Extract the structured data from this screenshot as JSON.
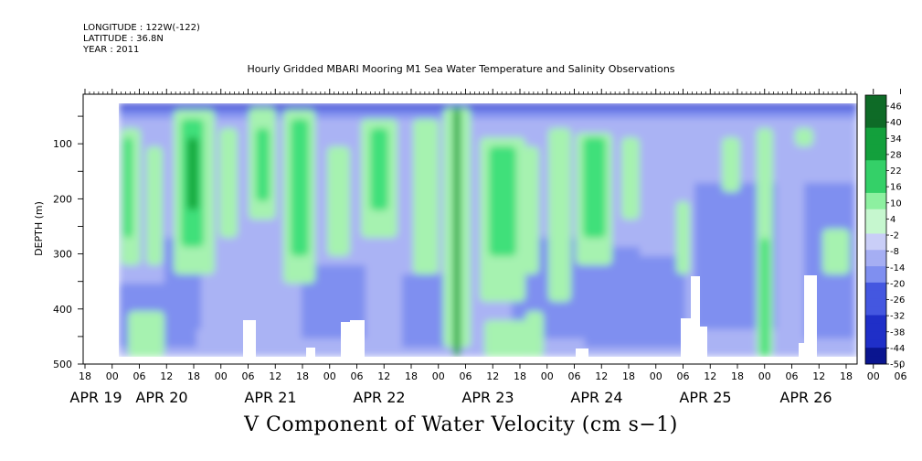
{
  "header": {
    "longitude": "LONGITUDE : 122W(-122)",
    "latitude": "LATITUDE : 36.8N",
    "year": "YEAR : 2011"
  },
  "chart_data": {
    "type": "heatmap",
    "title": "Hourly Gridded MBARI Mooring M1 Sea Water Temperature and Salinity Observations",
    "xlabel": "V Component of Water Velocity (cm s−1)",
    "ylabel": "DEPTH (m)",
    "ylim": [
      500,
      10
    ],
    "y_ticks": [
      100,
      200,
      300,
      400,
      500
    ],
    "x_hour_ticks": [
      "18",
      "00",
      "06",
      "12",
      "18",
      "00",
      "06",
      "12",
      "18",
      "00",
      "06",
      "12",
      "18",
      "00",
      "06",
      "12",
      "18",
      "00",
      "06",
      "12",
      "18",
      "00",
      "06",
      "12",
      "18",
      "00",
      "06",
      "12",
      "18",
      "00",
      "06",
      "12",
      "18",
      "00",
      "06",
      "12",
      "18"
    ],
    "x_day_labels": [
      "APR 19",
      "APR 20",
      "APR 21",
      "APR 22",
      "APR 23",
      "APR 24",
      "APR 25",
      "APR 26"
    ],
    "colorbar": {
      "labels": [
        "46",
        "40",
        "34",
        "28",
        "22",
        "16",
        "10",
        "4",
        "-2",
        "-8",
        "-14",
        "-20",
        "-26",
        "-32",
        "-38",
        "-44",
        "-50"
      ],
      "min": -50,
      "max": 46
    },
    "colors": {
      "strong_negative": "#1a2fd0",
      "negative": "#7f8ff0",
      "weak_negative": "#aab3f4",
      "weak_positive": "#a6f2b0",
      "positive": "#3fe07a",
      "strong_positive": "#12a83a"
    },
    "grid": false
  }
}
